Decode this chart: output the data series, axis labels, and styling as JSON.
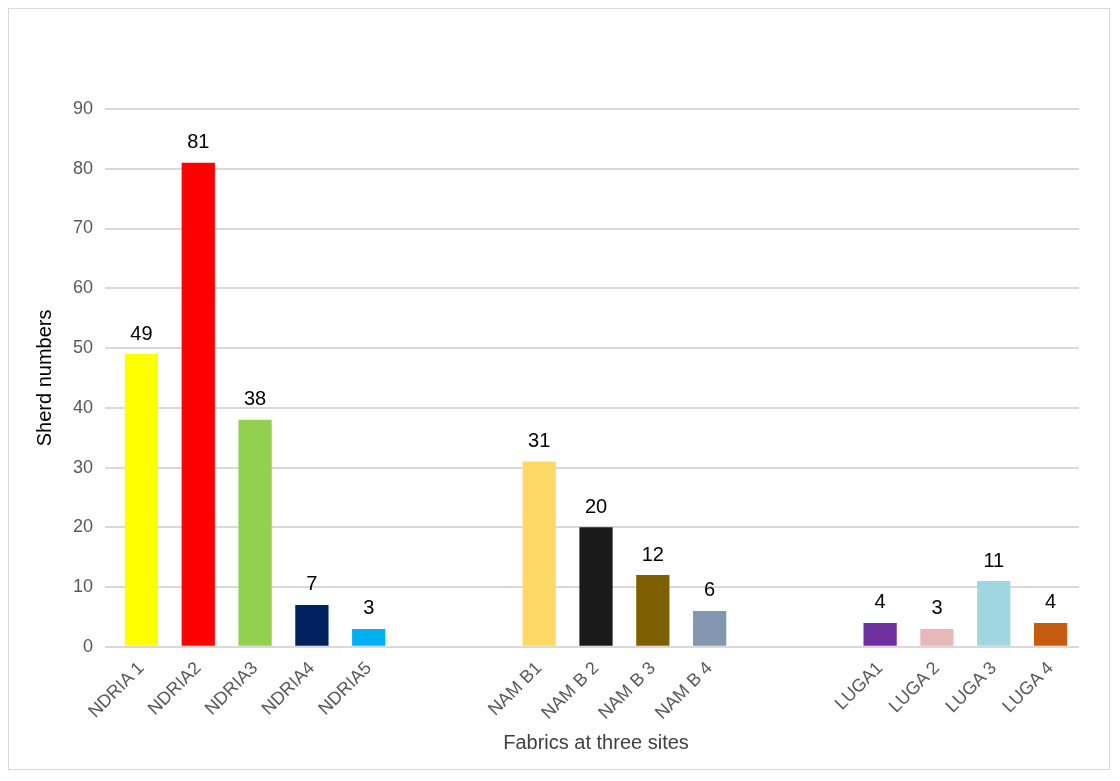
{
  "chart_data": {
    "type": "bar",
    "xlabel": "Fabrics at three sites",
    "ylabel": "Sherd numbers",
    "categories": [
      "NDRIA 1",
      "NDRIA2",
      "NDRIA3",
      "NDRIA4",
      "NDRIA5",
      null,
      null,
      "NAM B1",
      "NAM B 2",
      "NAM B 3",
      "NAM B 4",
      null,
      null,
      "LUGA1",
      "LUGA 2",
      "LUGA 3",
      "LUGA 4"
    ],
    "values": [
      49,
      81,
      38,
      7,
      3,
      null,
      null,
      31,
      20,
      12,
      6,
      null,
      null,
      4,
      3,
      11,
      4
    ],
    "colors": [
      "#ffff00",
      "#ff0000",
      "#92d050",
      "#002060",
      "#00b0f0",
      "#ffffff",
      "#ffffff",
      "#ffd966",
      "#1a1a1a",
      "#7f6000",
      "#8497b0",
      "#ffffff",
      "#ffffff",
      "#7030a0",
      "#e6b9b8",
      "#9fd6e0",
      "#c55a11"
    ],
    "ylim": [
      0,
      90
    ],
    "yticks": [
      0,
      10,
      20,
      30,
      40,
      50,
      60,
      70,
      80,
      90
    ],
    "grid": "y",
    "data_labels": true
  }
}
